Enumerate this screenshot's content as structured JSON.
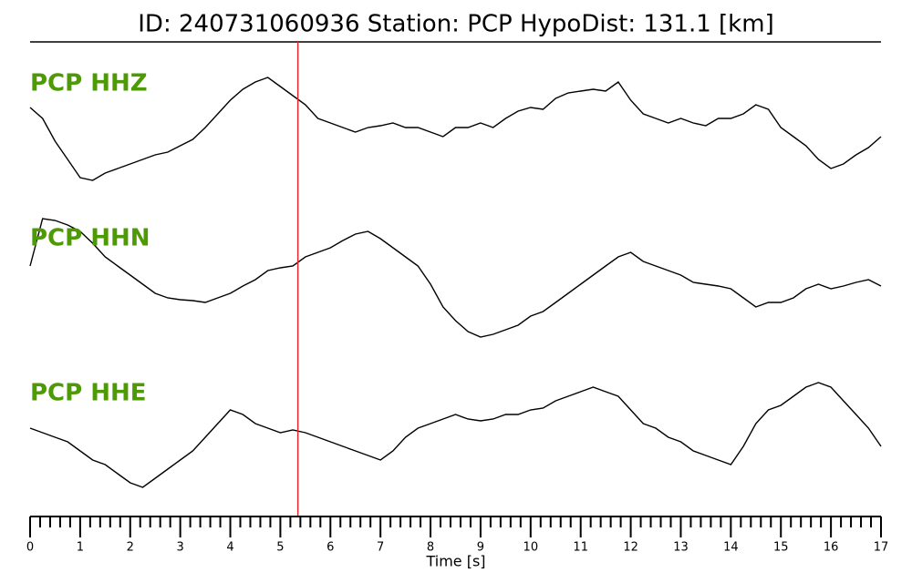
{
  "chart_data": {
    "type": "seismogram",
    "title": "ID: 240731060936   Station: PCP   HypoDist:   131.1 [km]",
    "xlabel": "Time [s]",
    "xlim": [
      0,
      17
    ],
    "xticks": [
      0,
      1,
      2,
      3,
      4,
      5,
      6,
      7,
      8,
      9,
      10,
      11,
      12,
      13,
      14,
      15,
      16,
      17
    ],
    "minor_ticks_per_interval": 5,
    "ylim": [
      -85,
      85
    ],
    "marker": {
      "x": 5.35,
      "color": "#e8262b"
    },
    "label_color": "#4e9a06",
    "x": [
      0,
      0.25,
      0.5,
      0.75,
      1,
      1.25,
      1.5,
      1.75,
      2,
      2.25,
      2.5,
      2.75,
      3,
      3.25,
      3.5,
      3.75,
      4,
      4.25,
      4.5,
      4.75,
      5,
      5.25,
      5.5,
      5.75,
      6,
      6.25,
      6.5,
      6.75,
      7,
      7.25,
      7.5,
      7.75,
      8,
      8.25,
      8.5,
      8.75,
      9,
      9.25,
      9.5,
      9.75,
      10,
      10.25,
      10.5,
      10.75,
      11,
      11.25,
      11.5,
      11.75,
      12,
      12.25,
      12.5,
      12.75,
      13,
      13.25,
      13.5,
      13.75,
      14,
      14.25,
      14.5,
      14.75,
      15,
      15.25,
      15.5,
      15.75,
      16,
      16.25,
      16.5,
      16.75,
      17
    ],
    "series": [
      {
        "name": "PCP HHZ",
        "color": "#000000",
        "values": [
          22,
          10,
          -15,
          -35,
          -55,
          -58,
          -50,
          -45,
          -40,
          -35,
          -30,
          -27,
          -20,
          -13,
          0,
          15,
          30,
          42,
          50,
          55,
          45,
          35,
          25,
          10,
          5,
          0,
          -5,
          0,
          2,
          5,
          0,
          0,
          -5,
          -10,
          0,
          0,
          5,
          0,
          10,
          18,
          22,
          20,
          32,
          38,
          40,
          42,
          40,
          50,
          30,
          15,
          10,
          5,
          10,
          5,
          2,
          10,
          10,
          15,
          25,
          20,
          0,
          -10,
          -20,
          -35,
          -45,
          -40,
          -30,
          -22,
          -10
        ]
      },
      {
        "name": "PCP HHN",
        "color": "#000000",
        "values": [
          18,
          70,
          68,
          63,
          56,
          43,
          28,
          18,
          8,
          -2,
          -12,
          -17,
          -19,
          -20,
          -22,
          -17,
          -12,
          -4,
          3,
          13,
          16,
          18,
          28,
          33,
          38,
          46,
          53,
          56,
          48,
          38,
          28,
          18,
          -2,
          -27,
          -42,
          -54,
          -60,
          -57,
          -52,
          -47,
          -37,
          -32,
          -22,
          -12,
          -2,
          8,
          18,
          28,
          33,
          23,
          18,
          13,
          8,
          0,
          -2,
          -4,
          -7,
          -17,
          -27,
          -22,
          -22,
          -17,
          -7,
          -2,
          -7,
          -4,
          0,
          3,
          -4
        ]
      },
      {
        "name": "PCP HHE",
        "color": "#000000",
        "values": [
          10,
          5,
          0,
          -5,
          -15,
          -25,
          -30,
          -40,
          -50,
          -55,
          -45,
          -35,
          -25,
          -15,
          0,
          15,
          30,
          25,
          15,
          10,
          5,
          8,
          5,
          0,
          -5,
          -10,
          -15,
          -20,
          -25,
          -15,
          0,
          10,
          15,
          20,
          25,
          20,
          18,
          20,
          25,
          25,
          30,
          32,
          40,
          45,
          50,
          55,
          50,
          45,
          30,
          15,
          10,
          0,
          -5,
          -15,
          -20,
          -25,
          -30,
          -10,
          15,
          30,
          35,
          45,
          55,
          60,
          55,
          40,
          25,
          10,
          -10
        ]
      }
    ]
  }
}
